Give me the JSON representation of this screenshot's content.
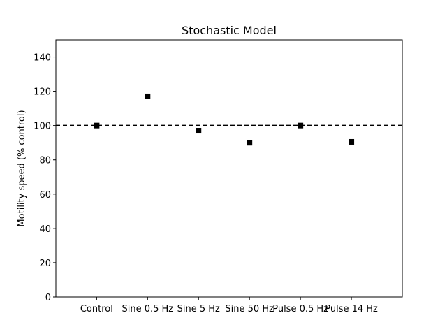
{
  "chart_data": {
    "type": "scatter",
    "title": "Stochastic Model",
    "xlabel": "",
    "ylabel": "Motility speed (% control)",
    "categories": [
      "Control",
      "Sine 0.5 Hz",
      "Sine 5 Hz",
      "Sine 50 Hz",
      "Pulse 0.5 Hz",
      "Pulse 14 Hz"
    ],
    "values": [
      100,
      117,
      97,
      90,
      100,
      90.5
    ],
    "ylim": [
      0,
      150
    ],
    "yticks": [
      0,
      20,
      40,
      60,
      80,
      100,
      120,
      140
    ],
    "reference_line": {
      "y": 100,
      "style": "dashed",
      "color": "#000000"
    },
    "marker": {
      "shape": "square",
      "color": "#000000"
    },
    "grid": false,
    "legend": "none"
  }
}
